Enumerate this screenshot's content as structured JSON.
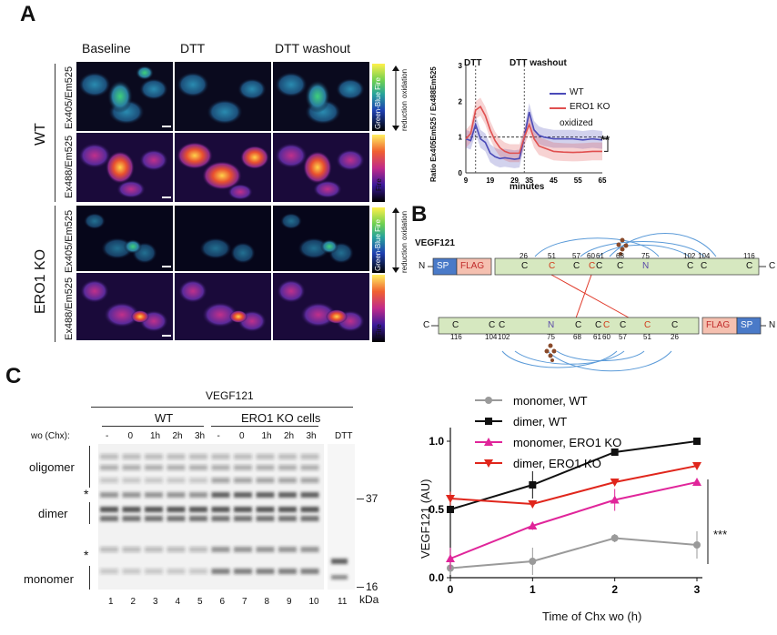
{
  "panelA": {
    "letter": "A",
    "columns": [
      "Baseline",
      "DTT",
      "DTT washout"
    ],
    "group_labels": [
      "WT",
      "ERO1 KO"
    ],
    "channel_labels": [
      "Ex405/Em525",
      "Ex488/Em525"
    ],
    "colorbar_labels": [
      "Green-Blue Fire",
      "Fire"
    ],
    "colorbar_arrows": [
      "oxidation",
      "reduction"
    ],
    "colors": {
      "bg": "#0a0a1e",
      "wt_line": "#4a4ab8",
      "ko_line": "#e05050"
    }
  },
  "chartA": {
    "chart_data": {
      "type": "line",
      "x": [
        9,
        11,
        13,
        15,
        17,
        19,
        21,
        23,
        25,
        27,
        29,
        31,
        33,
        35,
        37,
        39,
        41,
        45,
        49,
        53,
        57,
        61,
        65
      ],
      "series": [
        {
          "name": "WT",
          "values": [
            0.95,
            0.9,
            1.35,
            0.95,
            0.85,
            0.55,
            0.45,
            0.4,
            0.42,
            0.4,
            0.38,
            0.4,
            1.0,
            1.7,
            1.2,
            1.05,
            1.0,
            0.95,
            0.95,
            0.95,
            0.92,
            0.95,
            0.92
          ]
        },
        {
          "name": "ERO1 KO",
          "values": [
            0.95,
            1.1,
            1.75,
            1.85,
            1.6,
            1.2,
            0.9,
            0.7,
            0.6,
            0.55,
            0.55,
            0.55,
            1.0,
            1.35,
            0.95,
            0.75,
            0.7,
            0.6,
            0.58,
            0.57,
            0.58,
            0.6,
            0.6
          ]
        }
      ],
      "xticks": [
        "9",
        "19",
        "29",
        "35",
        "45",
        "55",
        "65"
      ],
      "yticks": [
        "0",
        "1",
        "2",
        "3"
      ],
      "xlabel": "minutes",
      "ylabel": "Ratio Ex405Em525 / Ex488Em525",
      "ylim": [
        0,
        3
      ],
      "annotations": [
        "DTT",
        "DTT washout",
        "oxidized",
        "**"
      ]
    }
  },
  "panelB": {
    "letter": "B",
    "protein": "VEGF121",
    "n_term": "N",
    "c_term": "C",
    "tag_sp": "SP",
    "tag_flag": "FLAG",
    "positions_top": [
      "26",
      "51",
      "57",
      "60",
      "61",
      "68",
      "75",
      "102",
      "104",
      "116"
    ],
    "positions_bottom": [
      "116",
      "104",
      "102",
      "75",
      "68",
      "61",
      "60",
      "57",
      "51",
      "26"
    ],
    "residue_c": "C",
    "residue_n": "N"
  },
  "panelC": {
    "letter": "C",
    "blot": {
      "title": "VEGF121",
      "groups": [
        "WT",
        "ERO1 KO cells"
      ],
      "row_label": "wo (Chx):",
      "lane_treatments": [
        "-",
        "0",
        "1h",
        "2h",
        "3h",
        "-",
        "0",
        "1h",
        "2h",
        "3h",
        "DTT"
      ],
      "lane_numbers": [
        "1",
        "2",
        "3",
        "4",
        "5",
        "6",
        "7",
        "8",
        "9",
        "10",
        "11"
      ],
      "bands": [
        "oligomer",
        "dimer",
        "monomer"
      ],
      "markers": [
        "37",
        "16"
      ],
      "unit": "kDa",
      "asterisk": "*"
    },
    "chart_data": {
      "type": "line",
      "x": [
        0,
        1,
        2,
        3
      ],
      "series": [
        {
          "name": "monomer, WT",
          "values": [
            0.07,
            0.12,
            0.29,
            0.24
          ],
          "color": "#9a9a9a"
        },
        {
          "name": "dimer,  WT",
          "values": [
            0.5,
            0.68,
            0.92,
            1.0
          ],
          "color": "#111111"
        },
        {
          "name": "monomer, ERO1 KO",
          "values": [
            0.14,
            0.38,
            0.57,
            0.7
          ],
          "color": "#e0259a"
        },
        {
          "name": "dimer, ERO1 KO",
          "values": [
            0.58,
            0.54,
            0.7,
            0.82
          ],
          "color": "#e0261c"
        }
      ],
      "xticks": [
        "0",
        "1",
        "2",
        "3"
      ],
      "yticks": [
        "0.0",
        "0.5",
        "1.0"
      ],
      "xlabel": "Time of Chx wo (h)",
      "ylabel": "VEGF121 (AU)",
      "ylim": [
        0,
        1.1
      ],
      "significance": "***"
    }
  }
}
